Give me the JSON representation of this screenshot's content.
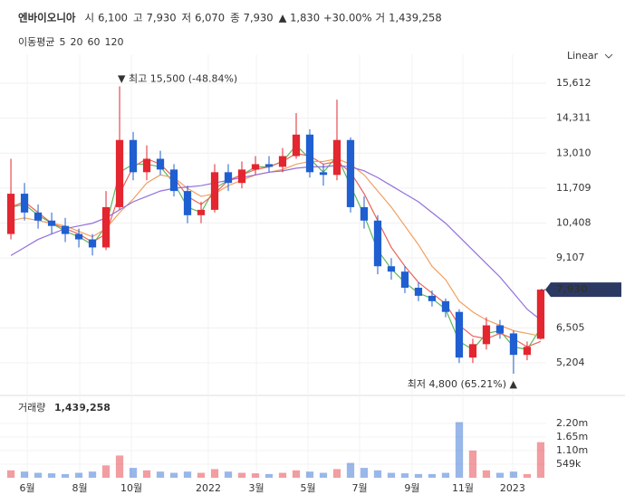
{
  "header": {
    "name": "엔바이오니아",
    "quote": [
      {
        "label": "시",
        "value": "6,100"
      },
      {
        "label": "고",
        "value": "7,930"
      },
      {
        "label": "저",
        "value": "6,070"
      },
      {
        "label": "종",
        "value": "7,930"
      }
    ],
    "change": "▲ 1,830",
    "change_pct": "+30.00%",
    "volume_label": "거",
    "volume": "1,439,258"
  },
  "scale_mode": "Linear",
  "chart_data": {
    "type": "candlestick",
    "legend_title": "이동평균",
    "candles": {
      "open": [
        10000,
        11500,
        10800,
        10500,
        10300,
        10000,
        9800,
        9500,
        11000,
        13500,
        12300,
        12800,
        12400,
        11600,
        10700,
        10900,
        12300,
        11900,
        12400,
        12600,
        12500,
        12900,
        13700,
        12300,
        12200,
        13500,
        11000,
        10500,
        8800,
        8600,
        8000,
        7700,
        7500,
        7100,
        5400,
        5900,
        6600,
        6300,
        5500,
        6100
      ],
      "high": [
        12800,
        11900,
        11100,
        10800,
        10600,
        10200,
        10000,
        11600,
        15500,
        13800,
        13300,
        13100,
        12600,
        11800,
        11200,
        12600,
        12600,
        12700,
        12900,
        12900,
        13200,
        14500,
        13900,
        12600,
        15000,
        13600,
        11400,
        10700,
        9100,
        8800,
        8200,
        7900,
        7600,
        7200,
        6100,
        6900,
        6800,
        6400,
        6000,
        7930
      ],
      "low": [
        9800,
        10500,
        10200,
        10000,
        9700,
        9500,
        9200,
        9400,
        10900,
        12000,
        12000,
        12200,
        11400,
        10400,
        10400,
        10800,
        11600,
        11700,
        12200,
        12300,
        12300,
        12800,
        12100,
        11800,
        12000,
        10800,
        10200,
        8500,
        8300,
        7800,
        7500,
        7300,
        6900,
        5200,
        5200,
        5700,
        6100,
        4800,
        5300,
        6070
      ],
      "close": [
        11500,
        10800,
        10500,
        10300,
        10000,
        9800,
        9500,
        11000,
        13500,
        12300,
        12800,
        12400,
        11600,
        10700,
        10900,
        12300,
        11900,
        12400,
        12600,
        12500,
        12900,
        13700,
        12300,
        12200,
        13500,
        11000,
        10500,
        8800,
        8600,
        8000,
        7700,
        7500,
        7100,
        5400,
        5900,
        6600,
        6300,
        5500,
        5800,
        7930
      ],
      "up_color": "#e3262f",
      "down_color": "#1f5fd1"
    },
    "series": [
      {
        "name": "5",
        "color": "#5cb85c",
        "values": [
          11000,
          11100,
          10700,
          10400,
          10100,
          9900,
          9600,
          10300,
          12300,
          12600,
          12600,
          12500,
          11900,
          11000,
          10800,
          11700,
          12000,
          12200,
          12500,
          12500,
          12700,
          13300,
          12800,
          12300,
          12900,
          11800,
          10700,
          9400,
          8700,
          8200,
          7800,
          7600,
          7200,
          6000,
          5700,
          6300,
          6400,
          5800,
          5700,
          6500
        ]
      },
      {
        "name": "20",
        "color": "#e8645a",
        "values": [
          11000,
          11200,
          10800,
          10400,
          10200,
          10000,
          9700,
          10000,
          11500,
          12500,
          12800,
          12600,
          12100,
          11400,
          11100,
          11500,
          12000,
          12200,
          12400,
          12500,
          12700,
          13000,
          12900,
          12600,
          12700,
          12300,
          11500,
          10500,
          9500,
          8800,
          8200,
          7800,
          7400,
          6600,
          6200,
          6100,
          6300,
          6100,
          5800,
          6000
        ]
      },
      {
        "name": "60",
        "color": "#f0a060",
        "values": [
          10500,
          10600,
          10500,
          10400,
          10300,
          10100,
          9900,
          10200,
          10800,
          11300,
          11900,
          12200,
          12100,
          11700,
          11400,
          11500,
          11800,
          12000,
          12200,
          12300,
          12400,
          12600,
          12700,
          12700,
          12800,
          12600,
          12200,
          11600,
          11000,
          10300,
          9600,
          8800,
          8300,
          7500,
          7100,
          6800,
          6600,
          6400,
          6300,
          6200
        ]
      },
      {
        "name": "120",
        "color": "#9370db",
        "values": [
          9200,
          9500,
          9800,
          10000,
          10200,
          10300,
          10400,
          10600,
          10900,
          11200,
          11400,
          11600,
          11700,
          11750,
          11800,
          11900,
          12000,
          12100,
          12200,
          12300,
          12350,
          12450,
          12500,
          12500,
          12550,
          12500,
          12350,
          12100,
          11800,
          11500,
          11200,
          10800,
          10400,
          9900,
          9400,
          8900,
          8400,
          7800,
          7200,
          6800
        ]
      }
    ],
    "xlim": [
      -0.47,
      39.07
    ],
    "xticks": [
      {
        "value": 1.2,
        "label": "6월"
      },
      {
        "value": 5.07,
        "label": "8월"
      },
      {
        "value": 8.87,
        "label": "10월"
      },
      {
        "value": 14.53,
        "label": "2022"
      },
      {
        "value": 18.07,
        "label": "3월"
      },
      {
        "value": 21.87,
        "label": "5월"
      },
      {
        "value": 25.67,
        "label": "7월"
      },
      {
        "value": 29.53,
        "label": "9월"
      },
      {
        "value": 33.27,
        "label": "11월"
      },
      {
        "value": 36.93,
        "label": "2023"
      }
    ],
    "ylim": [
      4227,
      16690
    ],
    "yticks": [
      {
        "value": 15612,
        "label": "15,612"
      },
      {
        "value": 14311,
        "label": "14,311"
      },
      {
        "value": 13010,
        "label": "13,010"
      },
      {
        "value": 11709,
        "label": "11,709"
      },
      {
        "value": 10408,
        "label": "10,408"
      },
      {
        "value": 9107,
        "label": "9,107"
      },
      {
        "value": 6505,
        "label": "6,505"
      },
      {
        "value": 5204,
        "label": "5,204"
      }
    ],
    "last_price": {
      "value": 7930,
      "label": "7,930"
    },
    "annotations": {
      "high": "▼ 최고 15,500 (-48.84%)",
      "low": "최저 4,800 (65.21%) ▲"
    },
    "volume": {
      "title": "거래량",
      "last": "1,439,258",
      "values": [
        300000,
        250000,
        200000,
        180000,
        150000,
        200000,
        250000,
        500000,
        900000,
        400000,
        300000,
        250000,
        200000,
        250000,
        200000,
        350000,
        250000,
        200000,
        180000,
        150000,
        200000,
        300000,
        250000,
        200000,
        350000,
        600000,
        400000,
        300000,
        200000,
        180000,
        150000,
        150000,
        200000,
        2250000,
        1100000,
        300000,
        200000,
        250000,
        150000,
        1439258
      ],
      "vlim": [
        0,
        3220000
      ],
      "vticks": [
        {
          "value": 2200000,
          "label": "2.20m"
        },
        {
          "value": 1650000,
          "label": "1.65m"
        },
        {
          "value": 1100000,
          "label": "1.10m"
        },
        {
          "value": 549000,
          "label": "549k"
        }
      ]
    },
    "grid": true
  }
}
